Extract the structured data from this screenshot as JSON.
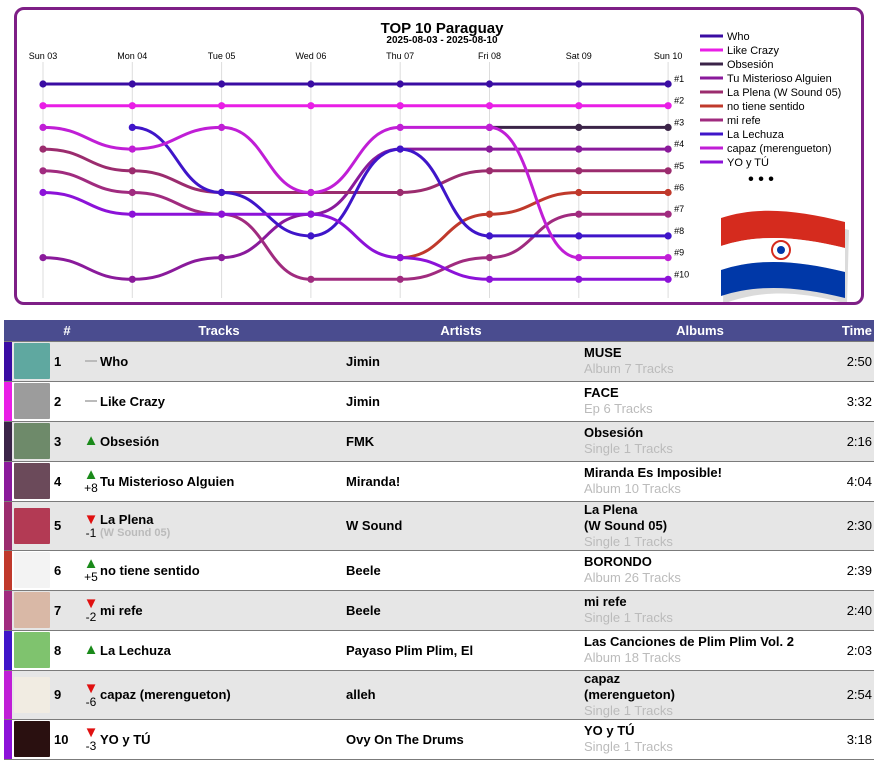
{
  "chart_data": {
    "type": "line",
    "title": "TOP 10 Paraguay",
    "subtitle": "2025-08-03 - 2025-08-10",
    "x": [
      "Sun 03",
      "Mon 04",
      "Tue 05",
      "Wed 06",
      "Thu 07",
      "Fri 08",
      "Sat 09",
      "Sun 10"
    ],
    "rank_labels": [
      "#1",
      "#2",
      "#3",
      "#4",
      "#5",
      "#6",
      "#7",
      "#8",
      "#9",
      "#10"
    ],
    "y_axis": "rank (1 at top)",
    "ylim": [
      1,
      10
    ],
    "grid": "vertical day lines",
    "legend": "right",
    "legend_more": "• • •",
    "series": [
      {
        "name": "Who",
        "color": "#3a0ca3",
        "values": [
          1,
          1,
          1,
          1,
          1,
          1,
          1,
          1
        ]
      },
      {
        "name": "Like Crazy",
        "color": "#e91ee6",
        "values": [
          2,
          2,
          2,
          2,
          2,
          2,
          2,
          2
        ]
      },
      {
        "name": "Obsesión",
        "color": "#3b2448",
        "values": [
          null,
          null,
          null,
          null,
          null,
          3,
          3,
          3
        ]
      },
      {
        "name": "Tu Misterioso Alguien",
        "color": "#8a1a9b",
        "values": [
          9,
          10,
          9,
          7,
          4,
          4,
          4,
          4
        ]
      },
      {
        "name": "La Plena (W Sound 05)",
        "color": "#9b2c6e",
        "values": [
          4,
          5,
          6,
          6,
          6,
          5,
          5,
          5
        ]
      },
      {
        "name": "no tiene sentido",
        "color": "#c0392b",
        "values": [
          null,
          null,
          null,
          null,
          9,
          7,
          6,
          6
        ]
      },
      {
        "name": "mi refe",
        "color": "#a02b7f",
        "values": [
          5,
          6,
          7,
          10,
          10,
          9,
          7,
          7
        ]
      },
      {
        "name": "La Lechuza",
        "color": "#3f15c9",
        "values": [
          null,
          3,
          6,
          8,
          4,
          8,
          8,
          8
        ]
      },
      {
        "name": "capaz (merengueton)",
        "color": "#c01ed6",
        "values": [
          3,
          4,
          3,
          6,
          3,
          3,
          9,
          9
        ]
      },
      {
        "name": "YO y TÚ",
        "color": "#8c12d8",
        "values": [
          6,
          7,
          7,
          7,
          9,
          10,
          10,
          10
        ]
      }
    ]
  },
  "chart_legend_colors": [
    "#3a0ca3",
    "#e91ee6",
    "#3b2448",
    "#8a1a9b",
    "#9b2c6e",
    "#c0392b",
    "#a02b7f",
    "#3f15c9",
    "#c01ed6",
    "#8c12d8"
  ],
  "flag_colors": {
    "red": "#d52b1e",
    "white": "#ffffff",
    "blue": "#0038a8"
  },
  "table": {
    "headers": {
      "num": "#",
      "tracks": "Tracks",
      "artists": "Artists",
      "albums": "Albums",
      "time": "Time"
    },
    "rows": [
      {
        "pos": "1",
        "trend": "same",
        "delta": "",
        "track": "Who",
        "track_sub": "",
        "artist": "Jimin",
        "album": "MUSE",
        "album_sub": "Album 7 Tracks",
        "time": "2:50",
        "bar_color": "#3a0ca3",
        "cover_color": "#5fa8a0"
      },
      {
        "pos": "2",
        "trend": "same",
        "delta": "",
        "track": "Like Crazy",
        "track_sub": "",
        "artist": "Jimin",
        "album": "FACE",
        "album_sub": "Ep 6 Tracks",
        "time": "3:32",
        "bar_color": "#e91ee6",
        "cover_color": "#9c9c9c"
      },
      {
        "pos": "3",
        "trend": "up",
        "delta": "",
        "track": "Obsesión",
        "track_sub": "",
        "artist": "FMK",
        "album": "Obsesión",
        "album_sub": "Single 1 Tracks",
        "time": "2:16",
        "bar_color": "#3b2448",
        "cover_color": "#6e8a6a"
      },
      {
        "pos": "4",
        "trend": "up",
        "delta": "+8",
        "track": "Tu Misterioso Alguien",
        "track_sub": "",
        "artist": "Miranda!",
        "album": "Miranda Es Imposible!",
        "album_sub": "Album 10 Tracks",
        "time": "4:04",
        "bar_color": "#8a1a9b",
        "cover_color": "#6b4a5a"
      },
      {
        "pos": "5",
        "trend": "down",
        "delta": "-1",
        "track": "La Plena",
        "track_sub": "(W Sound 05)",
        "artist": "W Sound",
        "album": "La Plena\n(W Sound 05)",
        "album_sub": "Single 1 Tracks",
        "time": "2:30",
        "bar_color": "#9b2c6e",
        "cover_color": "#b33a54"
      },
      {
        "pos": "6",
        "trend": "up",
        "delta": "+5",
        "track": "no tiene sentido",
        "track_sub": "",
        "artist": "Beele",
        "album": "BORONDO",
        "album_sub": "Album 26 Tracks",
        "time": "2:39",
        "bar_color": "#c0392b",
        "cover_color": "#f3f3f3"
      },
      {
        "pos": "7",
        "trend": "down",
        "delta": "-2",
        "track": "mi refe",
        "track_sub": "",
        "artist": "Beele",
        "album": "mi refe",
        "album_sub": "Single 1 Tracks",
        "time": "2:40",
        "bar_color": "#a02b7f",
        "cover_color": "#d9b8a6"
      },
      {
        "pos": "8",
        "trend": "up",
        "delta": "",
        "track": "La Lechuza",
        "track_sub": "",
        "artist": "Payaso Plim Plim, El",
        "album": "Las Canciones de Plim Plim Vol. 2",
        "album_sub": "Album 18 Tracks",
        "time": "2:03",
        "bar_color": "#3f15c9",
        "cover_color": "#7fc36e"
      },
      {
        "pos": "9",
        "trend": "down",
        "delta": "-6",
        "track": "capaz (merengueton)",
        "track_sub": "",
        "artist": "alleh",
        "album": "capaz\n(merengueton)",
        "album_sub": "Single 1 Tracks",
        "time": "2:54",
        "bar_color": "#c01ed6",
        "cover_color": "#f1ece2"
      },
      {
        "pos": "10",
        "trend": "down",
        "delta": "-3",
        "track": "YO y TÚ",
        "track_sub": "",
        "artist": "Ovy On The Drums",
        "album": "YO y TÚ",
        "album_sub": "Single 1 Tracks",
        "time": "3:18",
        "bar_color": "#8c12d8",
        "cover_color": "#2a1010"
      }
    ]
  }
}
